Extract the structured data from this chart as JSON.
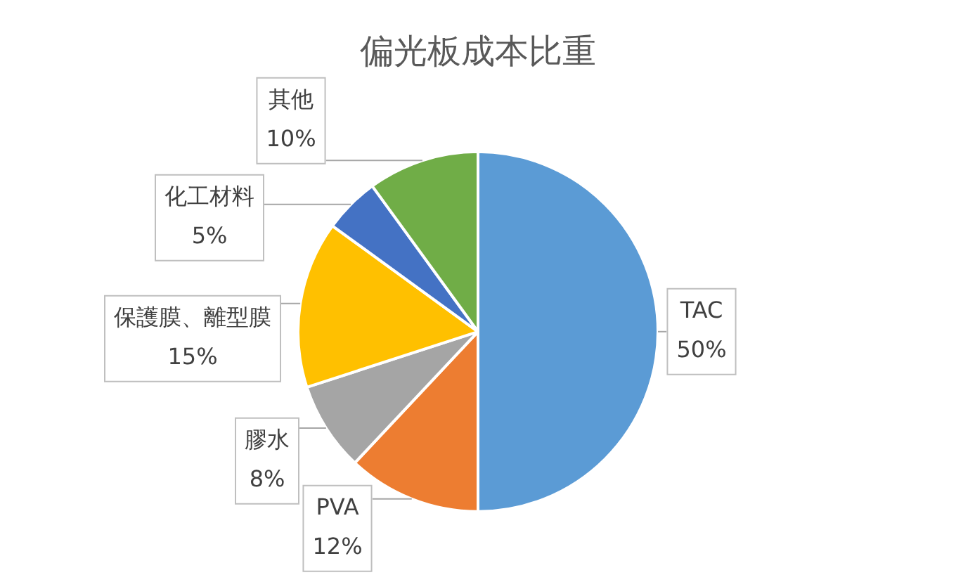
{
  "chart_data": {
    "type": "pie",
    "title": "偏光板成本比重",
    "categories": [
      "TAC",
      "PVA",
      "膠水",
      "保護膜、離型膜",
      "化工材料",
      "其他"
    ],
    "values": [
      50,
      12,
      8,
      15,
      5,
      10
    ],
    "colors": [
      "#5b9bd5",
      "#ed7d31",
      "#a5a5a5",
      "#ffc000",
      "#4472c4",
      "#70ad47"
    ],
    "value_labels": [
      "50%",
      "12%",
      "8%",
      "15%",
      "5%",
      "10%"
    ]
  }
}
